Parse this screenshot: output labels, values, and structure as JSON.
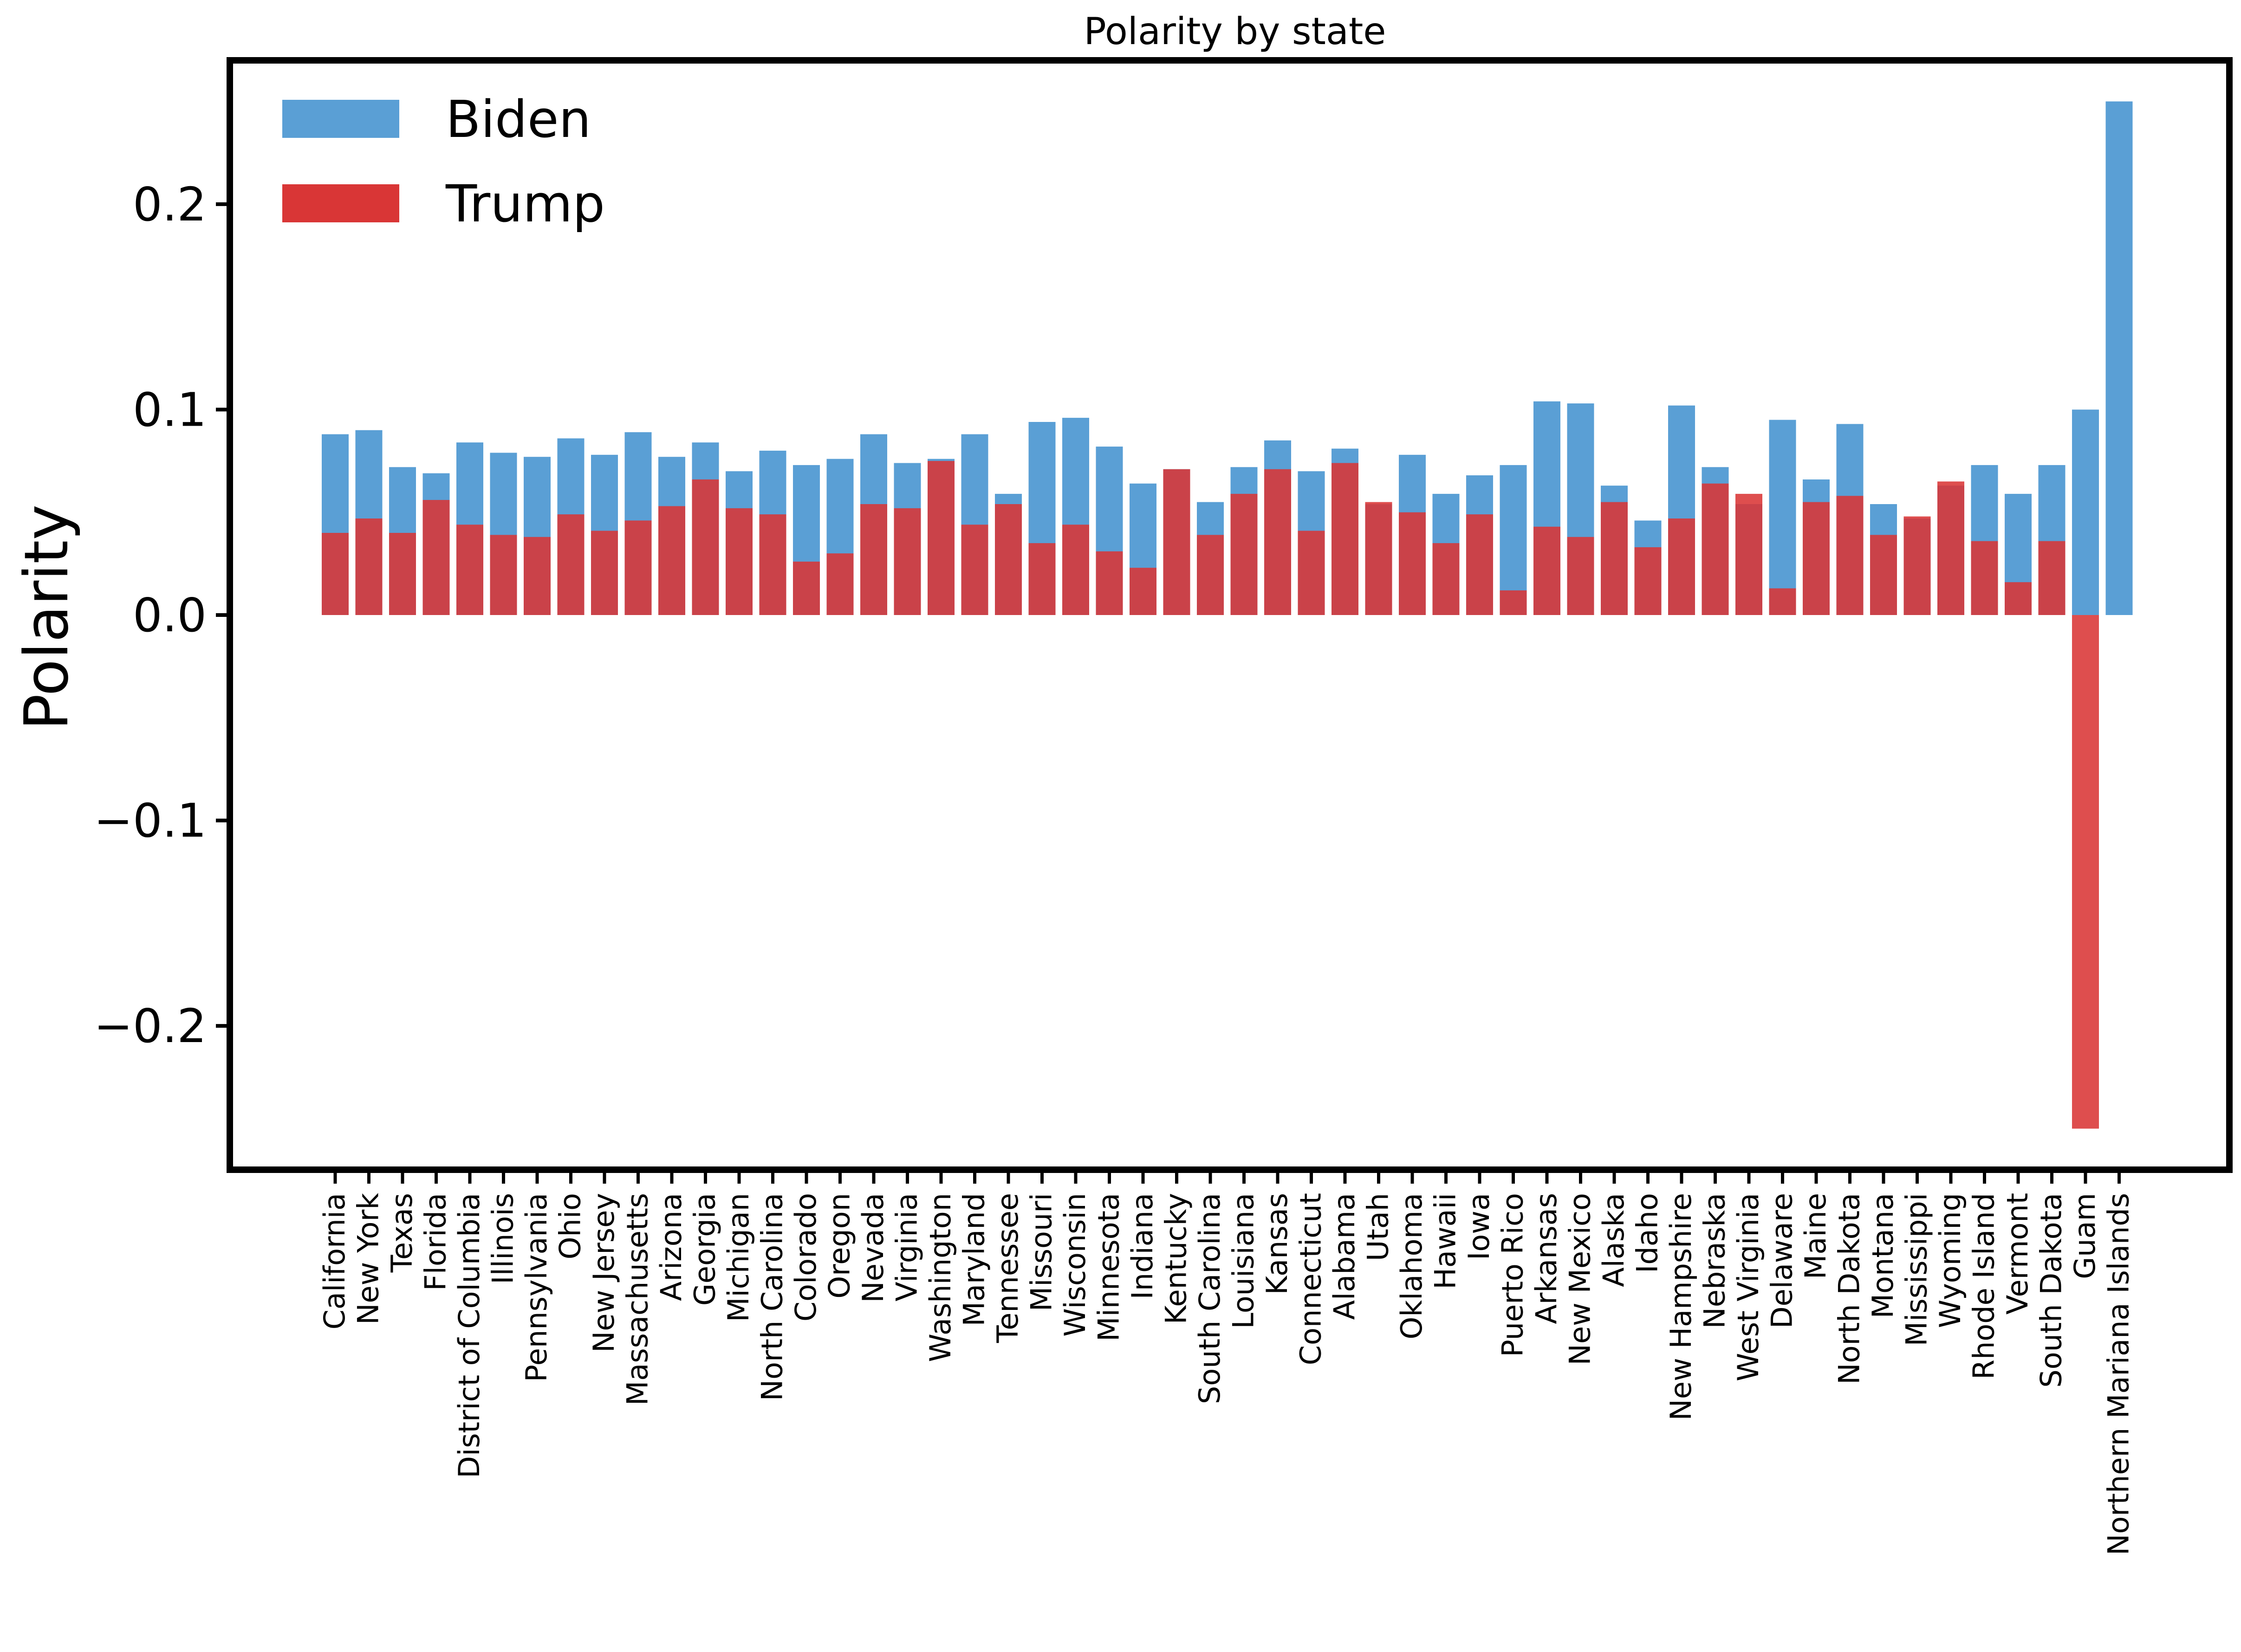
{
  "chart_data": {
    "type": "bar",
    "title": "Polarity by state",
    "xlabel": "",
    "ylabel": "Polarity",
    "ylim": [
      -0.27,
      0.27
    ],
    "yticks": [
      -0.2,
      -0.1,
      0.0,
      0.1,
      0.2
    ],
    "ytick_labels": [
      "−0.2",
      "−0.1",
      "0.0",
      "0.1",
      "0.2"
    ],
    "grid": false,
    "legend_position": "top-left",
    "categories": [
      "California",
      "New York",
      "Texas",
      "Florida",
      "District of Columbia",
      "Illinois",
      "Pennsylvania",
      "Ohio",
      "New Jersey",
      "Massachusetts",
      "Arizona",
      "Georgia",
      "Michigan",
      "North Carolina",
      "Colorado",
      "Oregon",
      "Nevada",
      "Virginia",
      "Washington",
      "Maryland",
      "Tennessee",
      "Missouri",
      "Wisconsin",
      "Minnesota",
      "Indiana",
      "Kentucky",
      "South Carolina",
      "Louisiana",
      "Kansas",
      "Connecticut",
      "Alabama",
      "Utah",
      "Oklahoma",
      "Hawaii",
      "Iowa",
      "Puerto Rico",
      "Arkansas",
      "New Mexico",
      "Alaska",
      "Idaho",
      "New Hampshire",
      "Nebraska",
      "West Virginia",
      "Delaware",
      "Maine",
      "North Dakota",
      "Montana",
      "Mississippi",
      "Wyoming",
      "Rhode Island",
      "Vermont",
      "South Dakota",
      "Guam",
      "Northern Mariana Islands"
    ],
    "series": [
      {
        "name": "Biden",
        "color": "#5a9fd5",
        "values": [
          0.088,
          0.09,
          0.072,
          0.069,
          0.084,
          0.079,
          0.077,
          0.086,
          0.078,
          0.089,
          0.077,
          0.084,
          0.07,
          0.08,
          0.073,
          0.076,
          0.088,
          0.074,
          0.076,
          0.088,
          0.059,
          0.094,
          0.096,
          0.082,
          0.064,
          0.071,
          0.055,
          0.072,
          0.085,
          0.07,
          0.081,
          0.054,
          0.078,
          0.059,
          0.068,
          0.073,
          0.104,
          0.103,
          0.063,
          0.046,
          0.102,
          0.072,
          0.054,
          0.095,
          0.066,
          0.093,
          0.054,
          0.047,
          0.063,
          0.073,
          0.059,
          0.073,
          0.1,
          0.25
        ]
      },
      {
        "name": "Trump",
        "color": "#d93636",
        "values": [
          0.04,
          0.047,
          0.04,
          0.056,
          0.044,
          0.039,
          0.038,
          0.049,
          0.041,
          0.046,
          0.053,
          0.066,
          0.052,
          0.049,
          0.026,
          0.03,
          0.054,
          0.052,
          0.075,
          0.044,
          0.054,
          0.035,
          0.044,
          0.031,
          0.023,
          0.071,
          0.039,
          0.059,
          0.071,
          0.041,
          0.074,
          0.055,
          0.05,
          0.035,
          0.049,
          0.012,
          0.043,
          0.038,
          0.055,
          0.033,
          0.047,
          0.064,
          0.059,
          0.013,
          0.055,
          0.058,
          0.039,
          0.048,
          0.065,
          0.036,
          0.016,
          0.036,
          -0.25,
          0.0
        ]
      }
    ]
  }
}
